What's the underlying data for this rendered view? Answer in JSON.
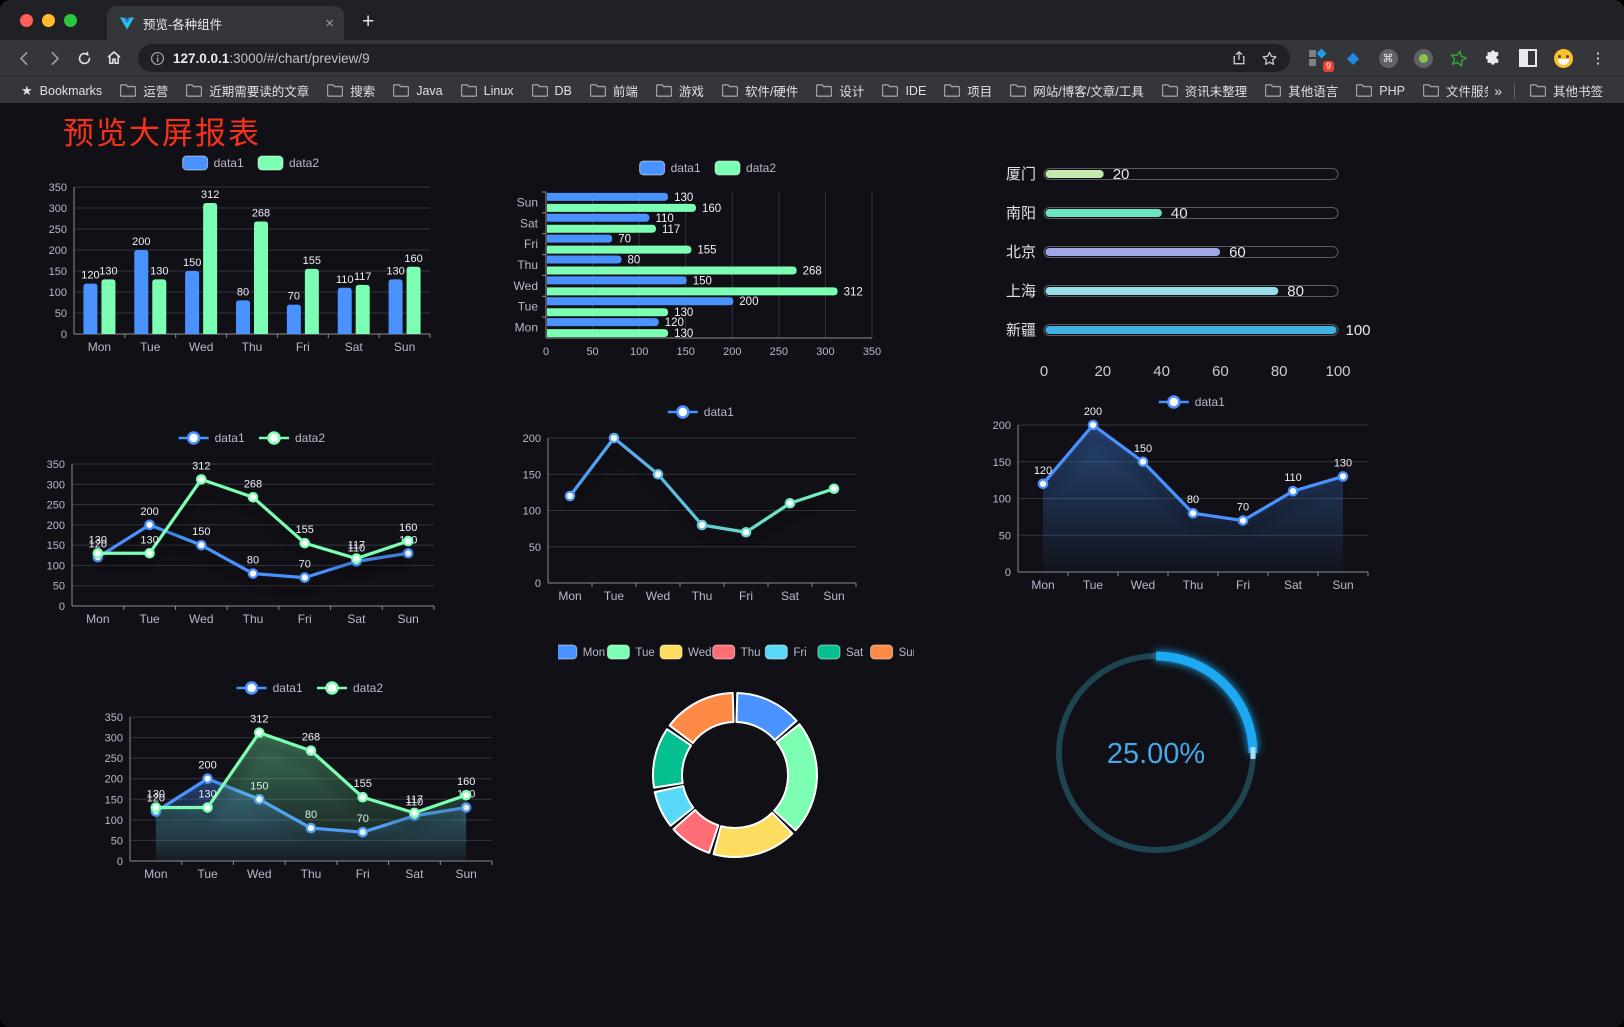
{
  "browser": {
    "tab_title": "预览-各种组件",
    "url_host": "127.0.0.1",
    "url_path": ":3000/#/chart/preview/9",
    "close_glyph": "×",
    "newtab_glyph": "+",
    "bookmarks_label": "Bookmarks",
    "bookmark_folders": [
      "运营",
      "近期需要读的文章",
      "搜索",
      "Java",
      "Linux",
      "DB",
      "前端",
      "游戏",
      "软件/硬件",
      "设计",
      "IDE",
      "项目",
      "网站/博客/文章/工具",
      "资讯未整理",
      "其他语言",
      "PHP",
      "文件服务器"
    ],
    "overflow_glyph": "»",
    "other_bookmarks_label": "其他书签",
    "extension_badge": "9",
    "cmd_glyph": "⌘",
    "kebab_glyph": "⋮"
  },
  "page": {
    "title": "预览大屏报表",
    "title_color": "#f5321b",
    "background": "#101016"
  },
  "chart_data": [
    {
      "id": "bar-grouped",
      "type": "bar",
      "categories": [
        "Mon",
        "Tue",
        "Wed",
        "Thu",
        "Fri",
        "Sat",
        "Sun"
      ],
      "series": [
        {
          "name": "data1",
          "color": "#4992ff",
          "values": [
            120,
            200,
            150,
            80,
            70,
            110,
            130
          ]
        },
        {
          "name": "data2",
          "color": "#7cffb2",
          "values": [
            130,
            130,
            312,
            268,
            155,
            117,
            160
          ]
        }
      ],
      "ylim": [
        0,
        350
      ],
      "yticks": [
        0,
        50,
        100,
        150,
        200,
        250,
        300,
        350
      ],
      "legend_position": "top",
      "grid": true
    },
    {
      "id": "hbar-grouped",
      "type": "bar-horizontal",
      "categories_top_to_bottom": [
        "Sun",
        "Sat",
        "Fri",
        "Thu",
        "Wed",
        "Tue",
        "Mon"
      ],
      "series": [
        {
          "name": "data1",
          "color": "#4992ff",
          "values_top_to_bottom": [
            130,
            110,
            70,
            80,
            150,
            200,
            120
          ]
        },
        {
          "name": "data2",
          "color": "#7cffb2",
          "values_top_to_bottom": [
            160,
            117,
            155,
            268,
            312,
            130,
            130
          ]
        }
      ],
      "xlim": [
        0,
        350
      ],
      "xticks": [
        0,
        50,
        100,
        150,
        200,
        250,
        300,
        350
      ],
      "legend_position": "top",
      "grid": true
    },
    {
      "id": "progress-bars",
      "type": "bar-horizontal-progress",
      "rows": [
        {
          "label": "厦门",
          "value": 20,
          "color": "#c4ebad"
        },
        {
          "label": "南阳",
          "value": 40,
          "color": "#6be6c1"
        },
        {
          "label": "北京",
          "value": 60,
          "color": "#a0a7e6"
        },
        {
          "label": "上海",
          "value": 80,
          "color": "#96dee8"
        },
        {
          "label": "新疆",
          "value": 100,
          "color": "#3fb1e3"
        }
      ],
      "xlim": [
        0,
        100
      ],
      "xticks": [
        0,
        20,
        40,
        60,
        80,
        100
      ]
    },
    {
      "id": "line-two-series",
      "type": "line",
      "categories": [
        "Mon",
        "Tue",
        "Wed",
        "Thu",
        "Fri",
        "Sat",
        "Sun"
      ],
      "series": [
        {
          "name": "data1",
          "color": "#4992ff",
          "values": [
            120,
            200,
            150,
            80,
            70,
            110,
            130
          ]
        },
        {
          "name": "data2",
          "color": "#7cffb2",
          "values": [
            130,
            130,
            312,
            268,
            155,
            117,
            160
          ]
        }
      ],
      "ylim": [
        0,
        350
      ],
      "yticks": [
        0,
        50,
        100,
        150,
        200,
        250,
        300,
        350
      ],
      "point_labels": true,
      "legend_position": "top"
    },
    {
      "id": "line-gradient",
      "type": "line",
      "categories": [
        "Mon",
        "Tue",
        "Wed",
        "Thu",
        "Fri",
        "Sat",
        "Sun"
      ],
      "series": [
        {
          "name": "data1",
          "color": "#4992ff",
          "gradient": [
            "#4992ff",
            "#7cffb2"
          ],
          "values": [
            120,
            200,
            150,
            80,
            70,
            110,
            130
          ]
        }
      ],
      "ylim": [
        0,
        200
      ],
      "yticks": [
        0,
        50,
        100,
        150,
        200
      ],
      "point_labels": false,
      "legend_position": "top"
    },
    {
      "id": "area-single",
      "type": "area",
      "categories": [
        "Mon",
        "Tue",
        "Wed",
        "Thu",
        "Fri",
        "Sat",
        "Sun"
      ],
      "series": [
        {
          "name": "data1",
          "color": "#4992ff",
          "values": [
            120,
            200,
            150,
            80,
            70,
            110,
            130
          ]
        }
      ],
      "ylim": [
        0,
        200
      ],
      "yticks": [
        0,
        50,
        100,
        150,
        200
      ],
      "point_labels": true,
      "legend_position": "top"
    },
    {
      "id": "area-two-series",
      "type": "area",
      "categories": [
        "Mon",
        "Tue",
        "Wed",
        "Thu",
        "Fri",
        "Sat",
        "Sun"
      ],
      "series": [
        {
          "name": "data1",
          "color": "#4992ff",
          "values": [
            120,
            200,
            150,
            80,
            70,
            110,
            130
          ]
        },
        {
          "name": "data2",
          "color": "#7cffb2",
          "values": [
            130,
            130,
            312,
            268,
            155,
            117,
            160
          ]
        }
      ],
      "ylim": [
        0,
        350
      ],
      "yticks": [
        0,
        50,
        100,
        150,
        200,
        250,
        300,
        350
      ],
      "point_labels": true,
      "legend_position": "top"
    },
    {
      "id": "donut",
      "type": "pie",
      "labels": [
        "Mon",
        "Tue",
        "Wed",
        "Thu",
        "Fri",
        "Sat",
        "Sun"
      ],
      "values": [
        120,
        200,
        150,
        80,
        70,
        110,
        130
      ],
      "colors": [
        "#4992ff",
        "#7cffb2",
        "#fddd60",
        "#ff6e76",
        "#58d9f9",
        "#05c091",
        "#ff8a45"
      ],
      "inner_radius_ratio": 0.65,
      "legend_position": "top"
    },
    {
      "id": "gauge",
      "type": "gauge",
      "value": 25,
      "display": "25.00%",
      "progress_color": "#1ba9f2",
      "track_color": "#1e4450",
      "text_color": "#46a8e6",
      "cap_color": "#a8def8"
    }
  ]
}
